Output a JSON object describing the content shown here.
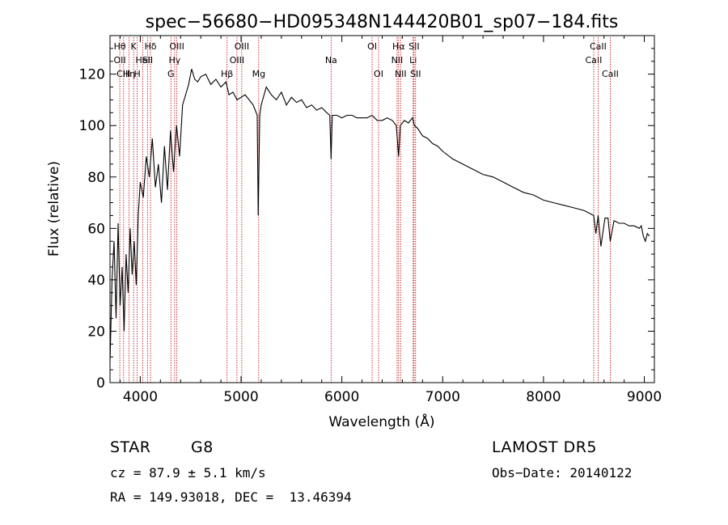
{
  "chart_data": {
    "type": "line",
    "title": "spec−56680−HD095348N144420B01_sp07−184.fits",
    "xlabel": "Wavelength (Å)",
    "ylabel": "Flux (relative)",
    "xlim": [
      3700,
      9100
    ],
    "ylim": [
      0,
      135
    ],
    "x_ticks": [
      4000,
      5000,
      6000,
      7000,
      8000,
      9000
    ],
    "y_ticks": [
      0,
      20,
      40,
      60,
      80,
      100,
      120
    ],
    "grid": false,
    "line_color": "#000000",
    "marker_color": "#c00000",
    "series": [
      {
        "x": [
          3700,
          3720,
          3740,
          3760,
          3780,
          3800,
          3820,
          3840,
          3860,
          3880,
          3900,
          3920,
          3940,
          3960,
          3980,
          4000,
          4030,
          4060,
          4090,
          4120,
          4150,
          4180,
          4210,
          4240,
          4270,
          4300,
          4330,
          4360,
          4390,
          4420,
          4450,
          4480,
          4510,
          4540,
          4570,
          4600,
          4650,
          4700,
          4750,
          4800,
          4850,
          4880,
          4920,
          4960,
          5000,
          5040,
          5080,
          5120,
          5160,
          5170,
          5185,
          5200,
          5250,
          5300,
          5350,
          5400,
          5450,
          5500,
          5550,
          5600,
          5650,
          5700,
          5750,
          5800,
          5850,
          5880,
          5893,
          5905,
          5950,
          6000,
          6050,
          6100,
          6150,
          6200,
          6250,
          6300,
          6350,
          6400,
          6450,
          6500,
          6540,
          6563,
          6580,
          6620,
          6660,
          6700,
          6720,
          6750,
          6800,
          6850,
          6900,
          6950,
          7000,
          7100,
          7200,
          7300,
          7400,
          7500,
          7600,
          7700,
          7800,
          7900,
          8000,
          8100,
          8200,
          8300,
          8400,
          8450,
          8498,
          8520,
          8542,
          8570,
          8610,
          8640,
          8662,
          8700,
          8750,
          8800,
          8850,
          8900,
          8950,
          8970,
          8990,
          9010,
          9030,
          9050
        ],
        "y": [
          8,
          40,
          55,
          25,
          62,
          30,
          45,
          20,
          50,
          35,
          60,
          42,
          55,
          38,
          65,
          78,
          72,
          88,
          80,
          95,
          76,
          85,
          70,
          92,
          75,
          98,
          82,
          100,
          88,
          108,
          112,
          116,
          122,
          118,
          117,
          119,
          120,
          116,
          118,
          115,
          117,
          112,
          113,
          110,
          111,
          112,
          110,
          108,
          104,
          65,
          104,
          108,
          115,
          112,
          110,
          113,
          108,
          111,
          109,
          110,
          107,
          108,
          106,
          107,
          105,
          104,
          87,
          104,
          104,
          103,
          104,
          104,
          103,
          103,
          103,
          104,
          102,
          102,
          103,
          102,
          100,
          88,
          100,
          102,
          101,
          103,
          100,
          99,
          96,
          95,
          93,
          92,
          90,
          87,
          85,
          83,
          81,
          80,
          78,
          76,
          74,
          73,
          71,
          70,
          69,
          68,
          67,
          66,
          65,
          58,
          65,
          53,
          64,
          64,
          55,
          63,
          62,
          62,
          61,
          61,
          60,
          61,
          57,
          55,
          58,
          57
        ]
      }
    ],
    "line_markers": [
      {
        "x": 3797,
        "labels": [
          "Hθ",
          "OII"
        ],
        "rows": [
          0,
          1
        ]
      },
      {
        "x": 3835,
        "labels": [
          "CIII"
        ],
        "rows": [
          2
        ]
      },
      {
        "x": 3889,
        "labels": [
          "Hη"
        ],
        "rows": [
          2
        ]
      },
      {
        "x": 3934,
        "labels": [
          "K"
        ],
        "rows": [
          0
        ]
      },
      {
        "x": 3970,
        "labels": [
          "H"
        ],
        "rows": [
          2
        ]
      },
      {
        "x": 4026,
        "labels": [
          "HeI"
        ],
        "rows": [
          1
        ]
      },
      {
        "x": 4072,
        "labels": [
          "SII"
        ],
        "rows": [
          1
        ]
      },
      {
        "x": 4102,
        "labels": [
          "Hδ"
        ],
        "rows": [
          0
        ]
      },
      {
        "x": 4304,
        "labels": [
          "G"
        ],
        "rows": [
          2
        ]
      },
      {
        "x": 4341,
        "labels": [
          "Hγ"
        ],
        "rows": [
          1
        ]
      },
      {
        "x": 4363,
        "labels": [
          "OIII"
        ],
        "rows": [
          0
        ]
      },
      {
        "x": 4861,
        "labels": [
          "Hβ"
        ],
        "rows": [
          2
        ]
      },
      {
        "x": 4959,
        "labels": [
          "OIII"
        ],
        "rows": [
          1
        ]
      },
      {
        "x": 5007,
        "labels": [
          "OIII"
        ],
        "rows": [
          0
        ]
      },
      {
        "x": 5175,
        "labels": [
          "Mg"
        ],
        "rows": [
          2
        ]
      },
      {
        "x": 5893,
        "labels": [
          "Na"
        ],
        "rows": [
          1
        ]
      },
      {
        "x": 6300,
        "labels": [
          "OI"
        ],
        "rows": [
          0
        ]
      },
      {
        "x": 6364,
        "labels": [
          "OI"
        ],
        "rows": [
          2
        ]
      },
      {
        "x": 6548,
        "labels": [
          "NII"
        ],
        "rows": [
          1
        ]
      },
      {
        "x": 6563,
        "labels": [
          "Hα"
        ],
        "rows": [
          0
        ]
      },
      {
        "x": 6583,
        "labels": [
          "NII"
        ],
        "rows": [
          2
        ]
      },
      {
        "x": 6707,
        "labels": [
          "Li"
        ],
        "rows": [
          1
        ]
      },
      {
        "x": 6716,
        "labels": [
          "SII"
        ],
        "rows": [
          0
        ]
      },
      {
        "x": 6731,
        "labels": [
          "SII"
        ],
        "rows": [
          2
        ]
      },
      {
        "x": 8498,
        "labels": [
          "CaII"
        ],
        "rows": [
          1
        ]
      },
      {
        "x": 8542,
        "labels": [
          "CaII"
        ],
        "rows": [
          0
        ]
      },
      {
        "x": 8662,
        "labels": [
          "CaII"
        ],
        "rows": [
          2
        ]
      }
    ]
  },
  "info": {
    "object_class": "STAR",
    "subclass": "G8",
    "redshift_text": "cz = 87.9 ± 5.1 km/s",
    "coords_text": "RA = 149.93018, DEC =  13.46394",
    "survey": "LAMOST DR5",
    "obs_date_text": "Obs−Date: 20140122"
  }
}
